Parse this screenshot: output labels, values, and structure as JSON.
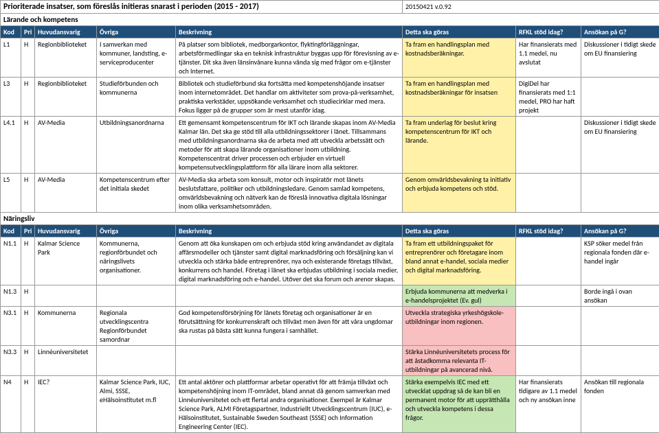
{
  "meta": {
    "title": "Prioriterade insatser, som föreslås initieras snarast i perioden (2015 - 2017)",
    "version": "20150421  v.0.92",
    "section1": "Lärande och kompetens",
    "section2": "Näringsliv"
  },
  "headers": {
    "kod": "Kod",
    "pri": "Pri",
    "huvud": "Huvudansvarig",
    "ovriga": "Övriga",
    "beskrivning": "Beskrivning",
    "detta": "Detta ska göras",
    "rfkl": "RFKL stöd idag?",
    "ansokan": "Ansökan på G?"
  },
  "rows1": [
    {
      "kod": "L1",
      "pri": "H",
      "huvud": "Regionbiblioteket",
      "ovriga": "I samverkan med kommuner, landsting, e-serviceproducenter",
      "besk": "På platser som bibliotek, medborgarkontor, flyktingförläggningar, arbetsförmedlingar ska en teknisk infrastruktur byggas upp för förevisning av e-tjänster. Dit ska även länsinvånare kunna vända sig med frågor om e-tjänster och Internet.",
      "detta": "Ta fram en handlingsplan med kostnadsberäkningar.",
      "rfkl": "Har finansierats med 1.1 medel, nu avslutat",
      "ans": "Diskussioner i tidigt skede om EU finansiering",
      "detta_hl": "hl-yellow"
    },
    {
      "kod": "L3",
      "pri": "H",
      "huvud": "Regionbiblioteket",
      "ovriga": "Studieförbunden och kommunerna",
      "besk": "Bibliotek och studieförbund ska fortsätta med kompetenshöjande insatser inom internetområdet. Det handlar om aktiviteter som prova-på-verksamhet, praktiska verkstäder, uppsökande verksamhet och studiecirklar med mera. Fokus ligger på de grupper som är mest utanför idag.",
      "detta": "Ta fram en handlingsplan med kostnadsberäkningar för insatsen",
      "rfkl": "DigiDel har finansierats med 1:1 medel, PRO har haft projekt",
      "ans": "",
      "detta_hl": "hl-yellow"
    },
    {
      "kod": "L4.1",
      "pri": "H",
      "huvud": "AV-Media",
      "ovriga": "Utbildningsanordnarna",
      "besk": "Ett gemensamt kompetenscentrum för IKT och lärande skapas inom AV-Media Kalmar län. Det ska ge stöd till alla utbildningssektorer i länet. Tillsammans med utbildningsanordnarna ska de arbeta med att utveckla arbetssätt och metoder för att skapa lärande organisationer inom utbildning. Kompetenscentrat driver processen och erbjuder en virtuell kompetensutvecklingsplattform för alla lärare inom alla sektorer.",
      "detta": "Ta fram underlag för beslut kring kompetenscentrum för IKT och lärande.",
      "rfkl": "",
      "ans": "Diskussioner i tidigt skede om EU finansiering",
      "detta_hl": "hl-yellow"
    },
    {
      "kod": "L5",
      "pri": "H",
      "huvud": "AV-Media",
      "ovriga": "Kompetenscentrum efter det initiala skedet",
      "besk": "AV-Media ska arbeta som konsult, motor och inspiratör mot länets beslutsfattare, politiker och utbildningsledare. Genom samlad kompetens, omvärldsbevakning och nätverk kan de föreslå innovativa digitala lösningar inom olika verksamhetsområden.",
      "detta": "Genom omvärldsbevakning ta initiativ och erbjuda kompetens och stöd.",
      "rfkl": "",
      "ans": "",
      "detta_hl": "hl-yellow"
    }
  ],
  "rows2": [
    {
      "kod": "N1.1",
      "pri": "H",
      "huvud": "Kalmar Science Park",
      "ovriga": "Kommunerna, regionförbundet och näringslivets organisationer.",
      "besk": "Genom att öka kunskapen om och erbjuda stöd kring användandet av digitala affärsmodeller och tjänster samt digital marknadsföring och försäljning kan vi utveckla och stärka både entreprenörer, nya och existerande företags tillväxt, konkurrens och handel.\nFöretag i länet ska erbjudas utbildning i sociala medier, digital marknadsföring och e-handel. Utöver det ska forum och arenor skapas.",
      "detta": "Ta fram ett utbildningspaket för entreprenörer och företagare inom bland annat e-handel, sociala medier och digital marknadsföring.",
      "rfkl": "",
      "ans": "KSP söker medel från regionala fonden där e-handel ingår",
      "detta_hl": "hl-yellow"
    },
    {
      "kod": "N1.3",
      "pri": "H",
      "huvud": "",
      "ovriga": "",
      "besk": "",
      "detta": "Erbjuda kommunerna att medverka i e-handelsprojektet (Ev. gul)",
      "rfkl": "",
      "ans": "Borde ingå i ovan ansökan",
      "detta_hl": "hl-green"
    },
    {
      "kod": "N3.1",
      "pri": "H",
      "huvud": "Kommunerna",
      "ovriga": "Regionala utvecklingscentra Regionförbundet samordnar",
      "besk": "God kompetensförsörjning för länets företag och organisationer är en förutsättning för konkurrenskraft och tillväxt men även för att våra ungdomar ska rustas på bästa sätt kunna fungera i samhället.",
      "detta": "Utveckla strategiska yrkeshögskole-utbildningar inom regionen.",
      "rfkl": "",
      "ans": "",
      "detta_hl": "hl-pink"
    },
    {
      "kod": "N3.3",
      "pri": "H",
      "huvud": "Linnéuniversitetet",
      "ovriga": "",
      "besk": "",
      "detta": "Stärka Linnéuniversitetets process för att åstadkomma relevanta IT-utbildningar på avancerad nivå.",
      "rfkl": "",
      "ans": "",
      "detta_hl": "hl-pink"
    },
    {
      "kod": "N4",
      "pri": "H",
      "huvud": "IEC?",
      "ovriga": "Kalmar Science Park, IUC, Almi, SSSE, eHälsoinstitutet m.fl",
      "besk": "Ett antal aktörer och plattformar arbetar operativt för att främja tillväxt och kompetenshöjning inom IT-området, bland annat då genom samverkan med Linnéuniversitetet och ett flertal andra organisationer. Exempel är Kalmar Science Park, ALMI Företagspartner, Industriellt Utvecklingscentrum (IUC), e-Hälsoinstitutet, Sustainable Sweden Southeast (SSSE) och Information Engineering Center (IEC).",
      "detta": "Stärka exempelvis IEC med ett utvecklat uppdrag så de kan bli en permanent motor för att upprätthålla och utveckla kompetens i dessa frågor.",
      "rfkl": "Har finansierats tidigare av 1.1 medel och ny ansökan inne",
      "ans": "Ansökan till regionala fonden",
      "detta_hl": "hl-green"
    }
  ]
}
